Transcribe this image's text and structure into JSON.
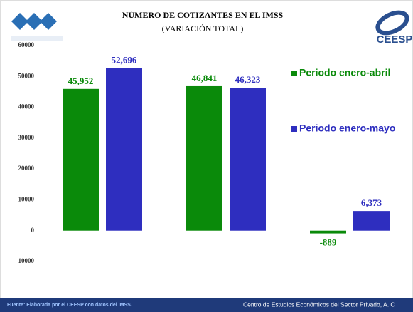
{
  "logo_text": "CEESP",
  "footer": {
    "source": "Fuente: Elaborada por el CEESP con datos del  IMSS.",
    "institution": "Centro de Estudios Económicos del Sector Privado, A. C"
  },
  "chart_data": {
    "type": "bar",
    "title": "NÚMERO DE COTIZANTES EN EL IMSS",
    "subtitle": "(VARIACIÓN TOTAL)",
    "categories": [
      null,
      null,
      null
    ],
    "series": [
      {
        "name": "Periodo enero-abril",
        "color": "#0a8a0a",
        "values": [
          45952,
          46841,
          -889
        ],
        "value_labels": [
          "45,952",
          "46,841",
          "-889"
        ]
      },
      {
        "name": "Periodo enero-mayo",
        "color": "#2e2ebf",
        "values": [
          52696,
          46323,
          6373
        ],
        "value_labels": [
          "52,696",
          "46,323",
          "6,373"
        ]
      }
    ],
    "ylim": [
      -10000,
      60000
    ],
    "yticks": [
      -10000,
      0,
      10000,
      20000,
      30000,
      40000,
      50000,
      60000
    ],
    "grid": false,
    "legend": "right"
  }
}
